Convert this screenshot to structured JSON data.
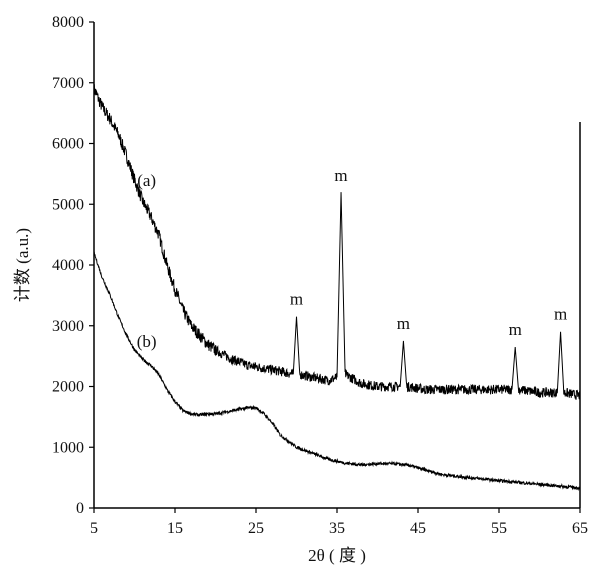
{
  "chart_data": {
    "type": "line",
    "title": "",
    "xlabel": "2θ ( 度 )",
    "ylabel": "计数 (a.u.)",
    "xlim": [
      5,
      65
    ],
    "ylim": [
      0,
      8000
    ],
    "xticks": [
      "5",
      "15",
      "25",
      "35",
      "45",
      "55",
      "65"
    ],
    "yticks": [
      "0",
      "1000",
      "2000",
      "3000",
      "4000",
      "5000",
      "6000",
      "7000",
      "8000"
    ],
    "grid": false,
    "line_color": "#000000",
    "series": [
      {
        "label": "(a)",
        "label_pos": [
          11.5,
          5300
        ],
        "points": [
          [
            5,
            6900
          ],
          [
            6,
            6600
          ],
          [
            7,
            6400
          ],
          [
            8,
            6150
          ],
          [
            9,
            5800
          ],
          [
            10,
            5400
          ],
          [
            11,
            5050
          ],
          [
            12,
            4800
          ],
          [
            13,
            4500
          ],
          [
            14,
            4000
          ],
          [
            15,
            3600
          ],
          [
            16,
            3250
          ],
          [
            17,
            3000
          ],
          [
            18,
            2850
          ],
          [
            19,
            2700
          ],
          [
            20,
            2600
          ],
          [
            22,
            2450
          ],
          [
            24,
            2350
          ],
          [
            26,
            2300
          ],
          [
            28,
            2250
          ],
          [
            29.6,
            2200
          ],
          [
            30,
            3150
          ],
          [
            30.4,
            2200
          ],
          [
            32,
            2150
          ],
          [
            34,
            2100
          ],
          [
            35,
            2150
          ],
          [
            35.5,
            5200
          ],
          [
            36,
            2200
          ],
          [
            38,
            2050
          ],
          [
            40,
            2000
          ],
          [
            42.8,
            2000
          ],
          [
            43.2,
            2750
          ],
          [
            43.6,
            2000
          ],
          [
            46,
            1950
          ],
          [
            50,
            1950
          ],
          [
            54,
            1950
          ],
          [
            56.6,
            1950
          ],
          [
            57,
            2650
          ],
          [
            57.4,
            1950
          ],
          [
            60,
            1900
          ],
          [
            62.2,
            1900
          ],
          [
            62.6,
            2900
          ],
          [
            63,
            1900
          ],
          [
            65,
            1850
          ]
        ]
      },
      {
        "label": "(b)",
        "label_pos": [
          11.5,
          2650
        ],
        "points": [
          [
            5,
            4200
          ],
          [
            6,
            3800
          ],
          [
            7,
            3500
          ],
          [
            8,
            3150
          ],
          [
            9,
            2850
          ],
          [
            10,
            2600
          ],
          [
            11,
            2450
          ],
          [
            12,
            2350
          ],
          [
            13,
            2200
          ],
          [
            14,
            1950
          ],
          [
            15,
            1750
          ],
          [
            16,
            1600
          ],
          [
            17,
            1550
          ],
          [
            18,
            1530
          ],
          [
            19,
            1550
          ],
          [
            20,
            1550
          ],
          [
            22,
            1600
          ],
          [
            24,
            1650
          ],
          [
            25,
            1650
          ],
          [
            26,
            1550
          ],
          [
            27,
            1400
          ],
          [
            28,
            1200
          ],
          [
            30,
            1000
          ],
          [
            32,
            900
          ],
          [
            34,
            800
          ],
          [
            36,
            740
          ],
          [
            38,
            710
          ],
          [
            40,
            730
          ],
          [
            42,
            730
          ],
          [
            44,
            700
          ],
          [
            46,
            620
          ],
          [
            48,
            550
          ],
          [
            50,
            520
          ],
          [
            55,
            450
          ],
          [
            60,
            390
          ],
          [
            65,
            330
          ]
        ]
      }
    ],
    "annotations": [
      {
        "text": "m",
        "x": 30,
        "y": 3350
      },
      {
        "text": "m",
        "x": 35.5,
        "y": 5380
      },
      {
        "text": "m",
        "x": 43.2,
        "y": 2950
      },
      {
        "text": "m",
        "x": 57,
        "y": 2850
      },
      {
        "text": "m",
        "x": 62.6,
        "y": 3100
      }
    ]
  }
}
